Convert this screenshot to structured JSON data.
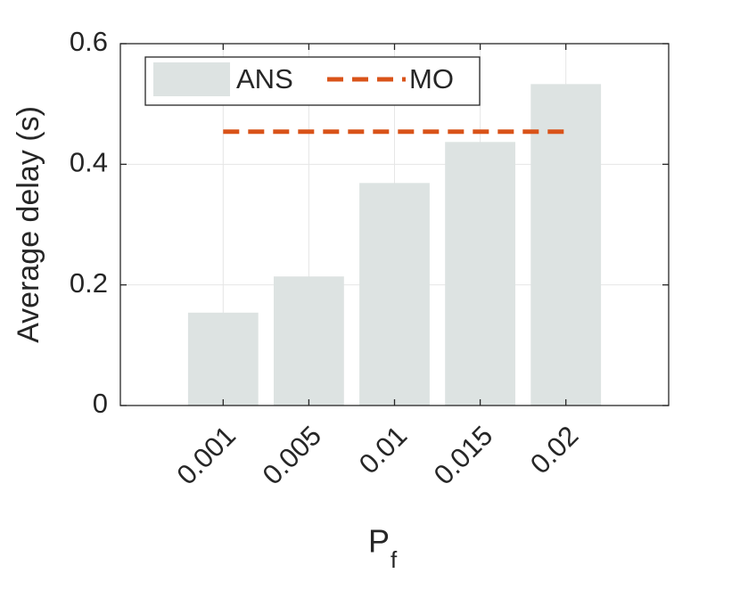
{
  "chart_data": {
    "type": "bar",
    "ylabel": "Average delay (s)",
    "xlabel": "P",
    "xlabel_subscript": "f",
    "categories": [
      "0.001",
      "0.005",
      "0.01",
      "0.015",
      "0.02"
    ],
    "series": [
      {
        "name": "ANS",
        "type": "bar",
        "color": "#dde3e2",
        "values": [
          0.154,
          0.214,
          0.369,
          0.437,
          0.533
        ]
      },
      {
        "name": "MO",
        "type": "line",
        "color": "#d95319",
        "dashed": true,
        "values": [
          0.454,
          0.454,
          0.454,
          0.454,
          0.454
        ]
      }
    ],
    "ylim": [
      0,
      0.6
    ],
    "yticks": [
      0,
      0.2,
      0.4,
      0.6
    ],
    "grid": true,
    "legend": "top-left"
  }
}
